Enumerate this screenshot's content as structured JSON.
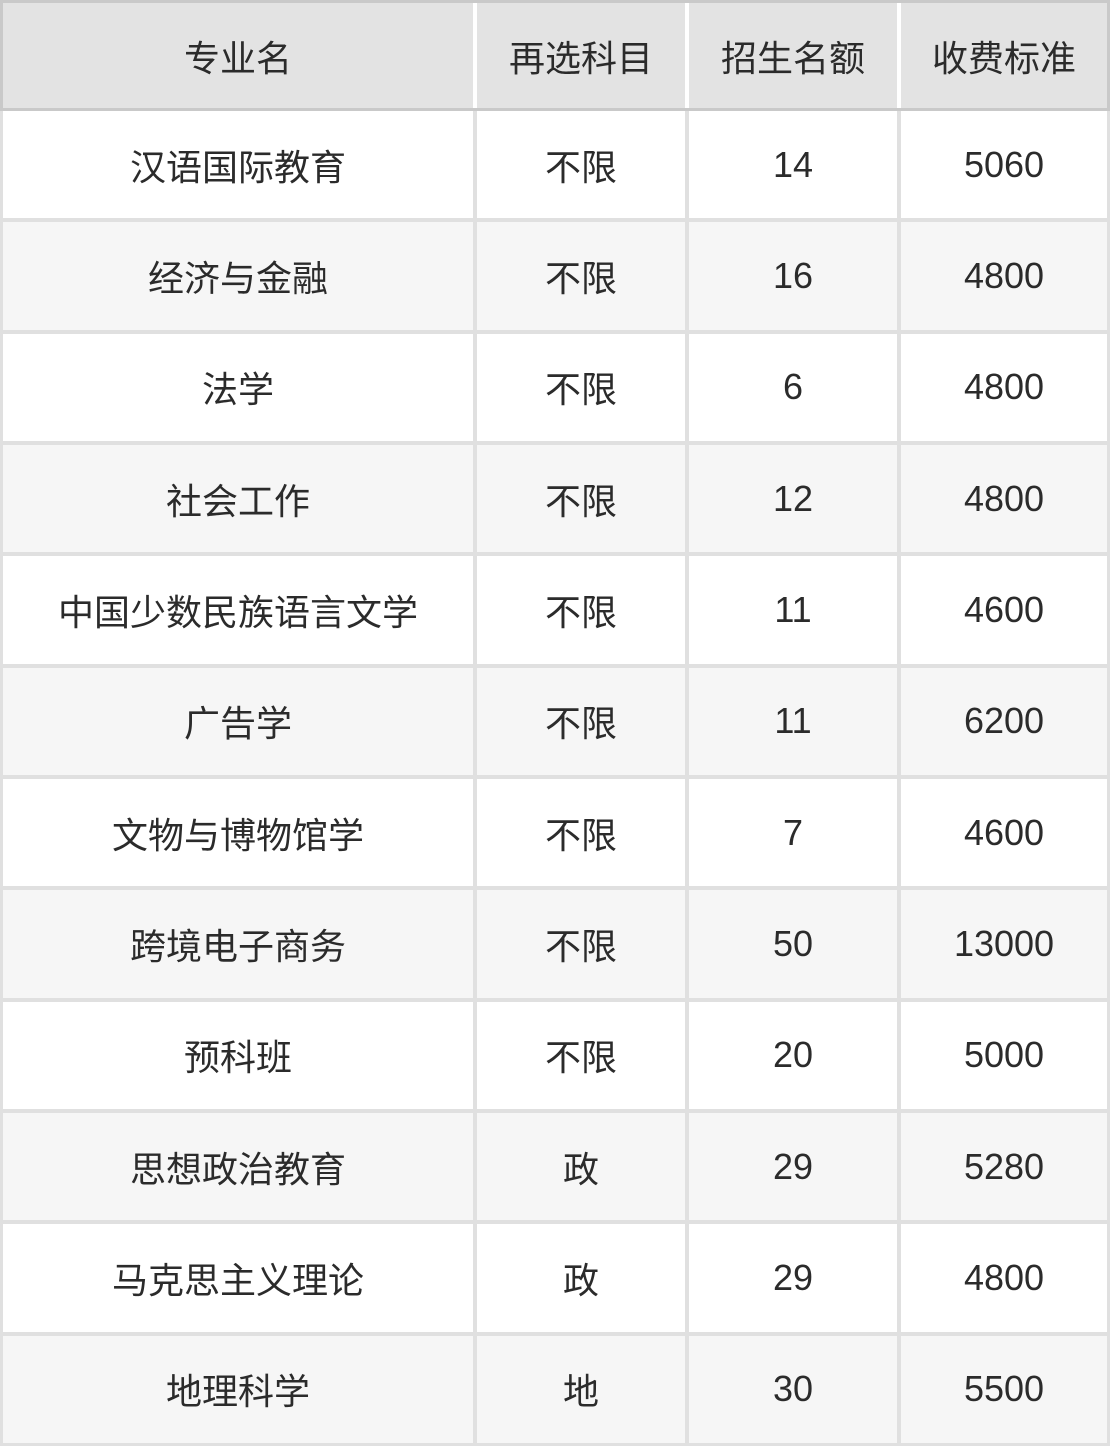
{
  "chart_data": {
    "type": "table",
    "columns": [
      "专业名",
      "再选科目",
      "招生名额",
      "收费标准"
    ],
    "rows": [
      [
        "汉语国际教育",
        "不限",
        14,
        5060
      ],
      [
        "经济与金融",
        "不限",
        16,
        4800
      ],
      [
        "法学",
        "不限",
        6,
        4800
      ],
      [
        "社会工作",
        "不限",
        12,
        4800
      ],
      [
        "中国少数民族语言文学",
        "不限",
        11,
        4600
      ],
      [
        "广告学",
        "不限",
        11,
        6200
      ],
      [
        "文物与博物馆学",
        "不限",
        7,
        4600
      ],
      [
        "跨境电子商务",
        "不限",
        50,
        13000
      ],
      [
        "预科班",
        "不限",
        20,
        5000
      ],
      [
        "思想政治教育",
        "政",
        29,
        5280
      ],
      [
        "马克思主义理论",
        "政",
        29,
        4800
      ],
      [
        "地理科学",
        "地",
        30,
        5500
      ]
    ],
    "layout": {
      "header_position": "top",
      "zebra_striping": true,
      "cell_alignment": "center"
    }
  },
  "colors": {
    "header_bg": "#e3e3e3",
    "header_border": "#c9c9c9",
    "header_gap": "#ffffff",
    "row_bg": "#ffffff",
    "row_alt_bg": "#f6f6f6",
    "grid_divider": "#e0e0e0",
    "text": "#2b2b2b"
  }
}
